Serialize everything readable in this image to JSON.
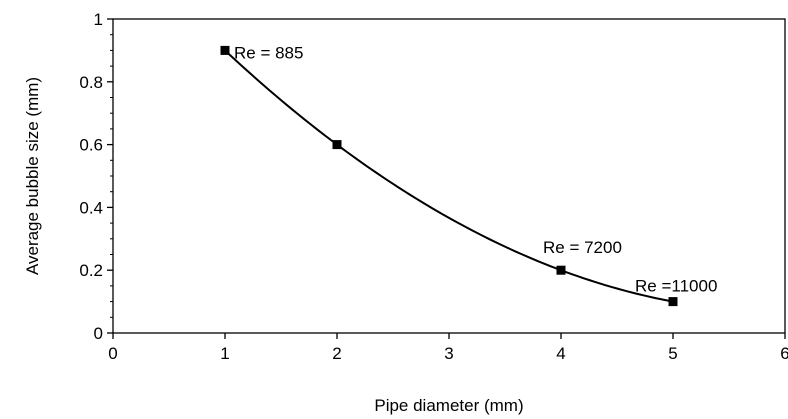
{
  "chart_data": {
    "type": "scatter",
    "title": "",
    "xlabel": "Pipe diameter (mm)",
    "ylabel": "Average bubble size (mm)",
    "xlim": [
      0,
      6
    ],
    "ylim": [
      0,
      1
    ],
    "xticks": [
      0,
      1,
      2,
      3,
      4,
      5,
      6
    ],
    "yticks": [
      0,
      0.2,
      0.4,
      0.6,
      0.8,
      1
    ],
    "xtick_labels": [
      "0",
      "1",
      "2",
      "3",
      "4",
      "5",
      "6"
    ],
    "ytick_labels": [
      "0",
      "0.2",
      "0.4",
      "0.6",
      "0.8",
      "1"
    ],
    "grid": false,
    "legend": "none",
    "series": [
      {
        "marker": "square",
        "x": [
          1,
          2,
          4,
          5
        ],
        "y": [
          0.9,
          0.6,
          0.2,
          0.1
        ],
        "trendline": "polynomial-2"
      }
    ],
    "annotations": [
      {
        "text": "Re = 885",
        "x": 1,
        "y": 0.9
      },
      {
        "text": "Re = 7200",
        "x": 4,
        "y": 0.2
      },
      {
        "text": "Re =11000",
        "x": 5,
        "y": 0.1
      }
    ],
    "colors": {
      "marker": "#000000",
      "line": "#000000",
      "axis": "#000000"
    }
  }
}
